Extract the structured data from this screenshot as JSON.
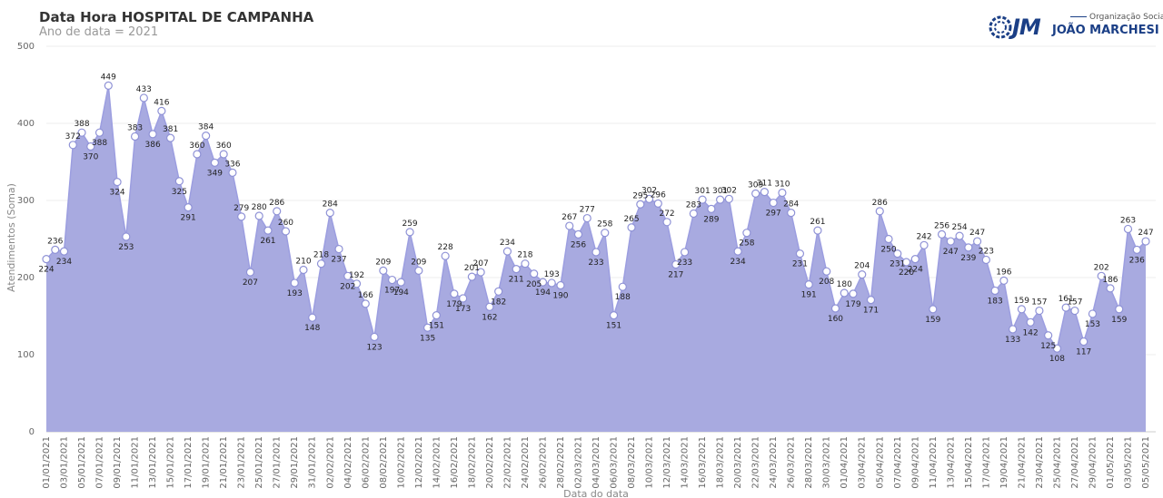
{
  "header": {
    "title": "Data Hora HOSPITAL DE CAMPANHA",
    "subtitle": "Ano de data = 2021"
  },
  "logo": {
    "mark": "JM",
    "tagline": "Organização Social",
    "name": "JOÃO MARCHESI",
    "icon": "swirl-logo-icon",
    "color": "#1b3f86"
  },
  "colors": {
    "area": "#a8aae0",
    "line": "#9c9ee0",
    "marker_fill": "#ffffff",
    "marker_stroke": "#8f92d6"
  },
  "chart_data": {
    "type": "area",
    "xlabel": "Data do data",
    "ylabel": "Atendimentos (Soma)",
    "ylim": [
      0,
      500
    ],
    "yticks": [
      0,
      100,
      200,
      300,
      400,
      500
    ],
    "grid": true,
    "x_tick_labels": [
      "01/01/2021",
      "03/01/2021",
      "05/01/2021",
      "07/01/2021",
      "09/01/2021",
      "11/01/2021",
      "13/01/2021",
      "15/01/2021",
      "17/01/2021",
      "19/01/2021",
      "21/01/2021",
      "23/01/2021",
      "25/01/2021",
      "27/01/2021",
      "29/01/2021",
      "31/01/2021",
      "02/02/2021",
      "04/02/2021",
      "06/02/2021",
      "08/02/2021",
      "10/02/2021",
      "12/02/2021",
      "14/02/2021",
      "16/02/2021",
      "18/02/2021",
      "20/02/2021",
      "22/02/2021",
      "24/02/2021",
      "26/02/2021",
      "28/02/2021",
      "02/03/2021",
      "04/03/2021",
      "06/03/2021",
      "08/03/2021",
      "10/03/2021",
      "12/03/2021",
      "14/03/2021",
      "16/03/2021",
      "18/03/2021",
      "20/03/2021",
      "22/03/2021",
      "24/03/2021",
      "26/03/2021",
      "28/03/2021",
      "30/03/2021",
      "01/04/2021",
      "03/04/2021",
      "05/04/2021",
      "07/04/2021",
      "09/04/2021",
      "11/04/2021",
      "13/04/2021",
      "15/04/2021",
      "17/04/2021",
      "19/04/2021",
      "21/04/2021",
      "23/04/2021",
      "25/04/2021",
      "27/04/2021",
      "29/04/2021",
      "01/05/2021",
      "03/05/2021",
      "05/05/2021"
    ],
    "series": [
      {
        "values": [
          224,
          236,
          234,
          372,
          388,
          370,
          388,
          449,
          324,
          253,
          383,
          433,
          386,
          416,
          381,
          325,
          291,
          360,
          384,
          349,
          360,
          336,
          279,
          207,
          280,
          261,
          286,
          260,
          193,
          210,
          148,
          218,
          284,
          237,
          202,
          192,
          166,
          123,
          209,
          197,
          194,
          259,
          209,
          135,
          151,
          228,
          179,
          173,
          201,
          207,
          162,
          182,
          234,
          211,
          218,
          205,
          194,
          193,
          190,
          267,
          256,
          277,
          233,
          258,
          151,
          188,
          265,
          295,
          302,
          296,
          272,
          217,
          233,
          283,
          301,
          289,
          301,
          302,
          234,
          258,
          309,
          311,
          297,
          310,
          284,
          231,
          191,
          261,
          208,
          160,
          180,
          179,
          204,
          171,
          286,
          250,
          231,
          220,
          224,
          242,
          159,
          256,
          247,
          254,
          239,
          247,
          223,
          183,
          196,
          133,
          159,
          142,
          157,
          125,
          108,
          161,
          157,
          117,
          153,
          202,
          186,
          159,
          263,
          236,
          247
        ]
      }
    ]
  }
}
